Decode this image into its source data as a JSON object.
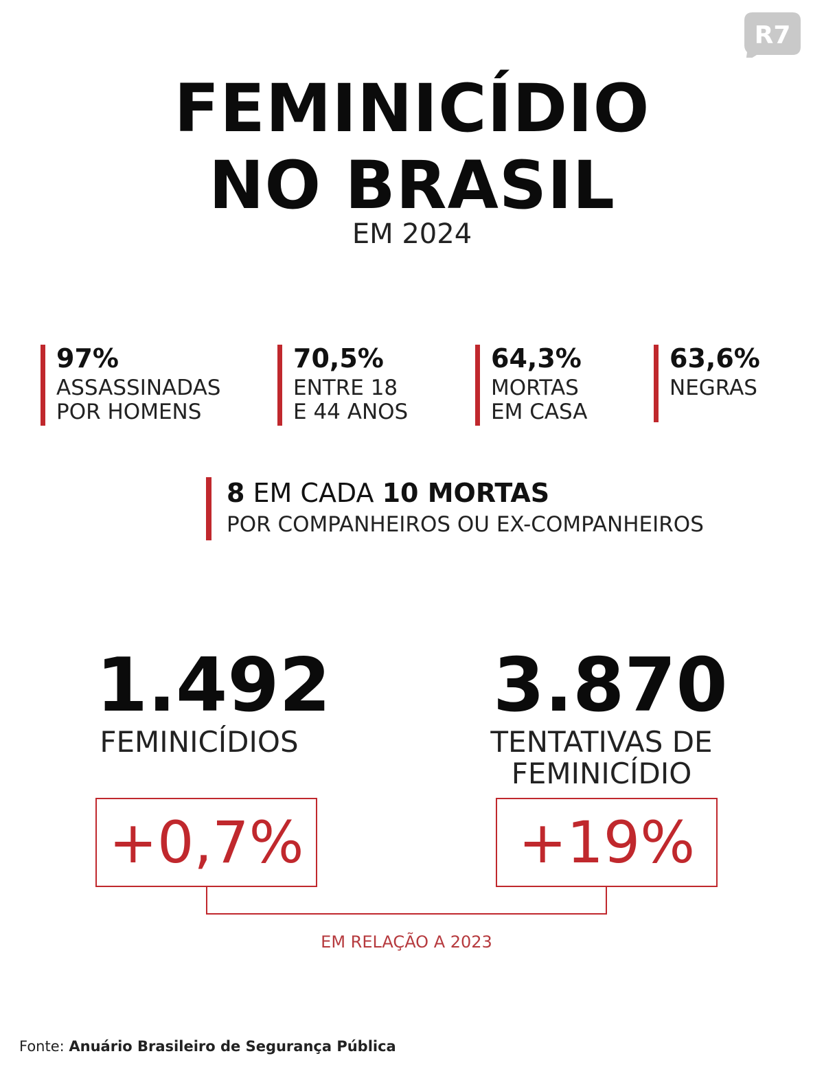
{
  "brand": {
    "logo_text": "R7",
    "logo_color": "#c9c9c9"
  },
  "title": {
    "line1": "FEMINICÍDIO",
    "line2": "NO BRASIL",
    "subtitle": "EM 2024"
  },
  "accent_color": "#c0282d",
  "stats": [
    {
      "value": "97%",
      "label": "ASSASSINADAS\nPOR HOMENS"
    },
    {
      "value": "70,5%",
      "label": "ENTRE 18\nE 44 ANOS"
    },
    {
      "value": "64,3%",
      "label": "MORTAS\nEM CASA"
    },
    {
      "value": "63,6%",
      "label": "NEGRAS"
    }
  ],
  "highlight": {
    "num1": "8",
    "mid": " EM CADA ",
    "num2": "10 MORTAS",
    "line2": "POR COMPANHEIROS OU EX-COMPANHEIROS"
  },
  "totals": [
    {
      "number": "1.492",
      "label": "FEMINICÍDIOS",
      "change": "+0,7%"
    },
    {
      "number": "3.870",
      "label": "TENTATIVAS DE\nFEMINICÍDIO",
      "change": "+19%"
    }
  ],
  "comparison_note": "EM RELAÇÃO A 2023",
  "source": {
    "prefix": "Fonte: ",
    "name": "Anuário Brasileiro de Segurança Pública"
  }
}
